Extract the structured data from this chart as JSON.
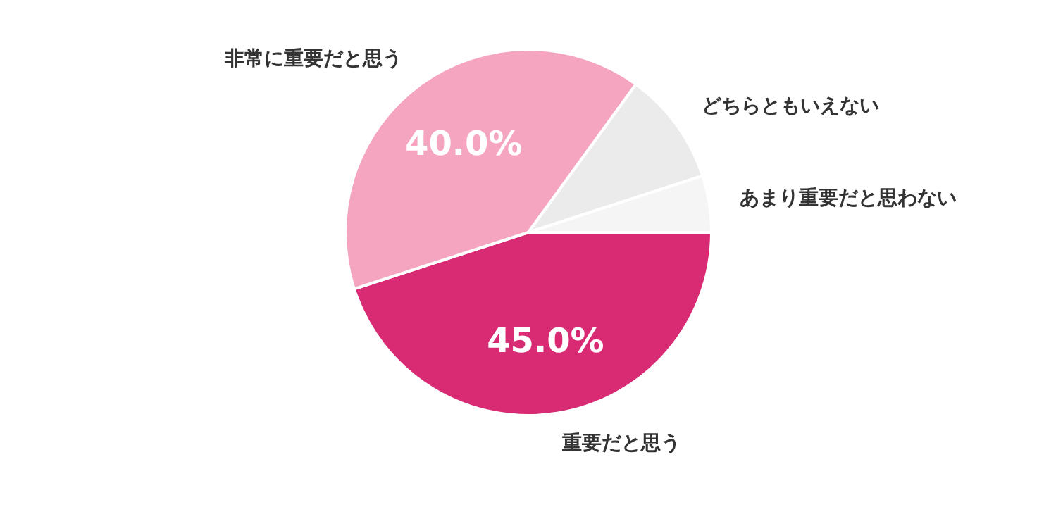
{
  "chart_data": {
    "type": "pie",
    "categories": [
      "重要だと思う",
      "非常に重要だと思う",
      "どちらともいえない",
      "あまり重要だと思わない"
    ],
    "values": [
      45,
      40,
      10,
      5
    ],
    "value_labels": [
      "45.0%",
      "40.0%",
      null,
      null
    ],
    "colors": [
      "#d92a74",
      "#f6a5c0",
      "#ebebeb",
      "#f5f5f5"
    ],
    "legend": false
  }
}
